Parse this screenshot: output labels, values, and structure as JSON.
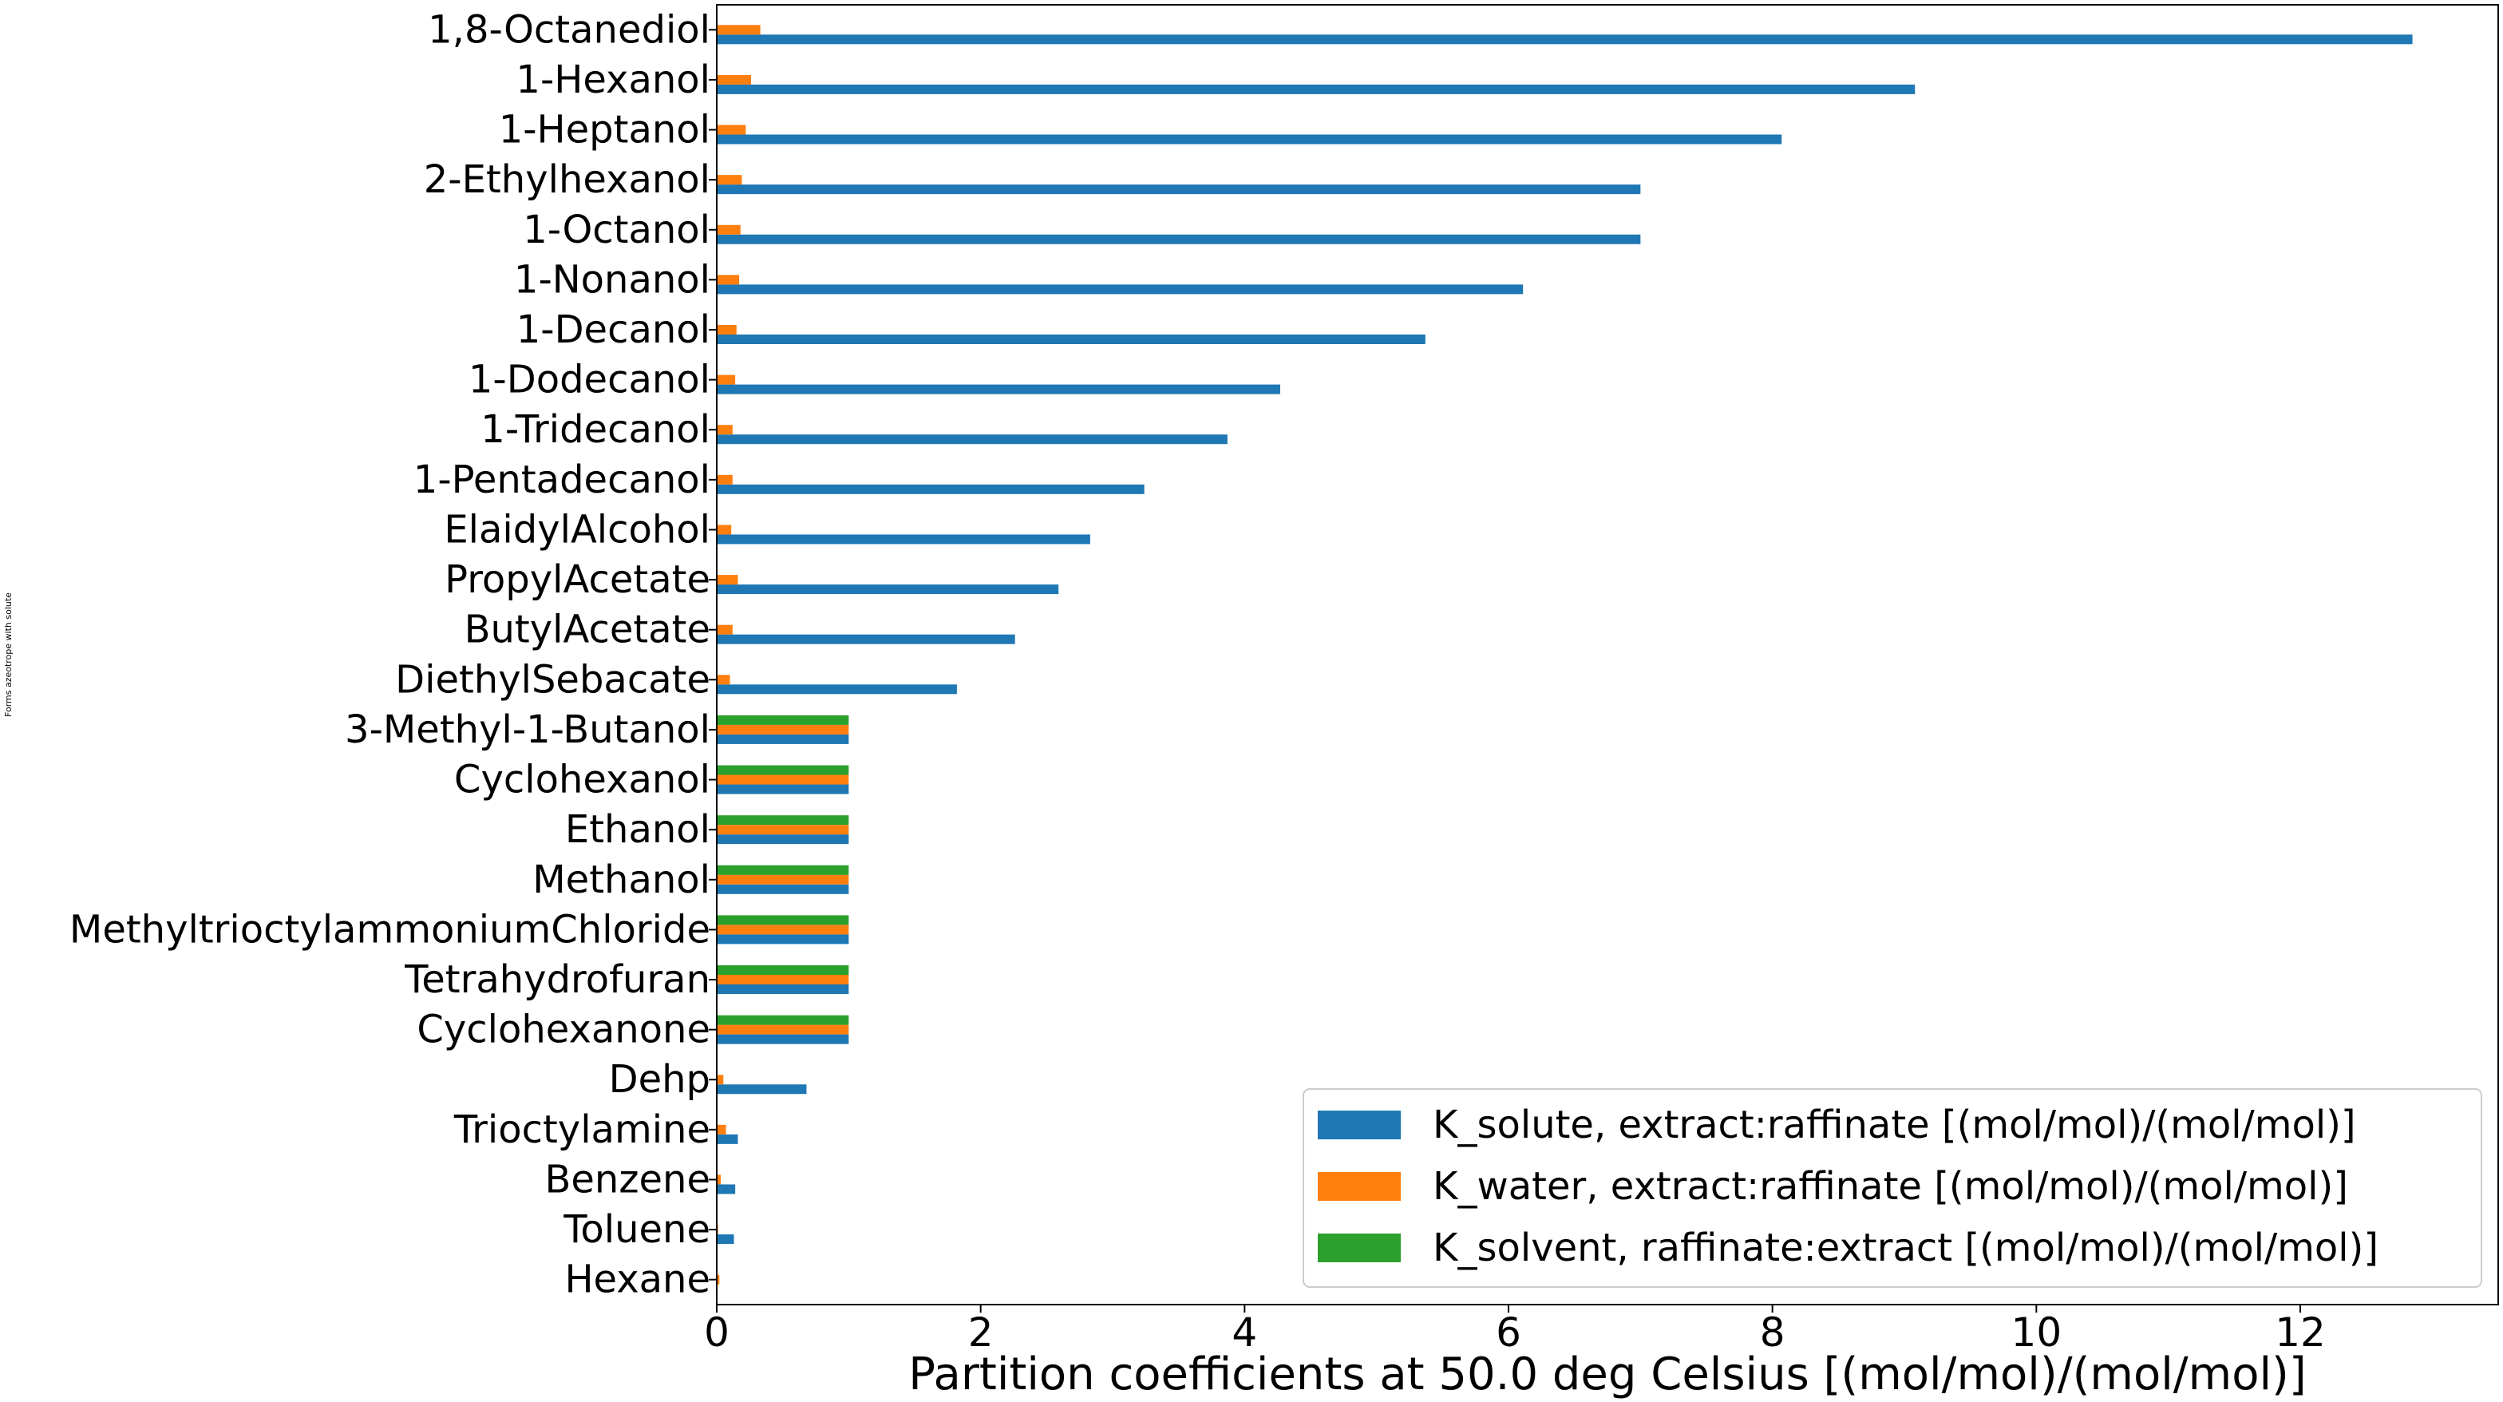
{
  "chart_data": {
    "type": "bar",
    "orientation": "horizontal",
    "title": "",
    "xlabel": "Partition coefficients at 50.0 deg Celsius [(mol/mol)/(mol/mol)]",
    "ylabel": "Forms azeotrope with solute",
    "xlim": [
      0,
      13.5
    ],
    "xticks": [
      0,
      2,
      4,
      6,
      8,
      10,
      12
    ],
    "grid": false,
    "legend_position": "lower-right",
    "categories": [
      "1,8-Octanediol",
      "1-Hexanol",
      "1-Heptanol",
      "2-Ethylhexanol",
      "1-Octanol",
      "1-Nonanol",
      "1-Decanol",
      "1-Dodecanol",
      "1-Tridecanol",
      "1-Pentadecanol",
      "ElaidylAlcohol",
      "PropylAcetate",
      "ButylAcetate",
      "DiethylSebacate",
      "3-Methyl-1-Butanol",
      "Cyclohexanol",
      "Ethanol",
      "Methanol",
      "MethyltrioctylammoniumChloride",
      "Tetrahydrofuran",
      "Cyclohexanone",
      "Dehp",
      "Trioctylamine",
      "Benzene",
      "Toluene",
      "Hexane"
    ],
    "series": [
      {
        "name": "K_solute, extract:raffinate [(mol/mol)/(mol/mol)]",
        "color": "#1f77b4",
        "values": [
          12.85,
          9.08,
          8.07,
          7.0,
          7.0,
          6.11,
          5.37,
          4.27,
          3.87,
          3.24,
          2.83,
          2.59,
          2.26,
          1.82,
          1.0,
          1.0,
          1.0,
          1.0,
          1.0,
          1.0,
          1.0,
          0.68,
          0.16,
          0.14,
          0.13,
          0.005
        ]
      },
      {
        "name": "K_water, extract:raffinate [(mol/mol)/(mol/mol)]",
        "color": "#ff7f0e",
        "values": [
          0.33,
          0.26,
          0.22,
          0.19,
          0.18,
          0.17,
          0.15,
          0.14,
          0.12,
          0.12,
          0.11,
          0.16,
          0.12,
          0.1,
          1.0,
          1.0,
          1.0,
          1.0,
          1.0,
          1.0,
          1.0,
          0.05,
          0.07,
          0.03,
          0.01,
          0.02
        ]
      },
      {
        "name": "K_solvent, raffinate:extract [(mol/mol)/(mol/mol)]",
        "color": "#2ca02c",
        "values": [
          0,
          0,
          0,
          0,
          0,
          0,
          0,
          0,
          0,
          0,
          0,
          0,
          0,
          0,
          1.0,
          1.0,
          1.0,
          1.0,
          1.0,
          1.0,
          1.0,
          0,
          0,
          0,
          0,
          0
        ]
      }
    ]
  }
}
